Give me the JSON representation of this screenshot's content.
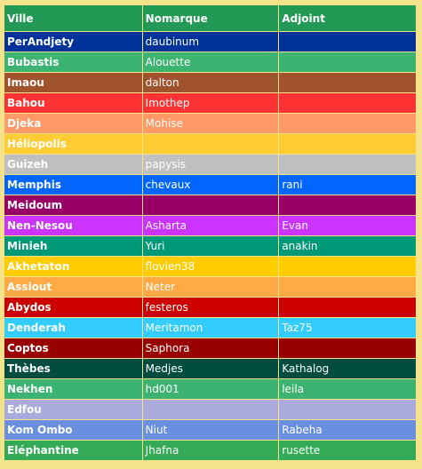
{
  "table": {
    "header": [
      "Ville",
      "Nomarque",
      "Adjoint"
    ],
    "header_color": "#229955",
    "rows": [
      [
        "PerAndjety",
        "daubinum",
        null
      ],
      [
        "Bubastis",
        "Alouette",
        null
      ],
      [
        "Imaou",
        "dalton",
        null
      ],
      [
        "Bahou",
        "Imothep",
        null
      ],
      [
        "Djeka",
        "Mohise",
        null
      ],
      [
        "Héliopolis",
        null,
        null
      ],
      [
        "Guizeh",
        "papysis",
        null
      ],
      [
        "Memphis",
        "chevaux",
        "rani"
      ],
      [
        "Meidoum",
        null,
        null
      ],
      [
        "Nen-Nesou",
        "Asharta",
        "Evan"
      ],
      [
        "Minieh",
        "Yuri",
        "anakin"
      ],
      [
        "Akhetaton",
        "flovien38",
        null
      ],
      [
        "Assiout",
        "Neter",
        null
      ],
      [
        "Abydos",
        "festeros",
        null
      ],
      [
        "Denderah",
        "Meritamon",
        "Taz75"
      ],
      [
        "Coptos",
        "Saphora",
        null
      ],
      [
        "Thèbes",
        "Medjes",
        "Kathalog"
      ],
      [
        "Nekhen",
        "hd001",
        "leila"
      ],
      [
        "Edfou",
        null,
        null
      ],
      [
        "Kom Ombo",
        "Niut",
        "Rabeha"
      ],
      [
        "Eléphantine",
        "Jhafna",
        "rusette"
      ]
    ],
    "row_colors": [
      "#003399",
      "#3cb371",
      "#a0522d",
      "#ff3333",
      "#ff9966",
      "#ffcc33",
      "#c0c0c0",
      "#0066ff",
      "#990066",
      "#cc33ff",
      "#009977",
      "#ffcc00",
      "#ffaa44",
      "#cc0000",
      "#33ccff",
      "#990000",
      "#004d40",
      "#3cb371",
      "#aaaadd",
      "#6b8fe0",
      "#33aa55"
    ]
  }
}
